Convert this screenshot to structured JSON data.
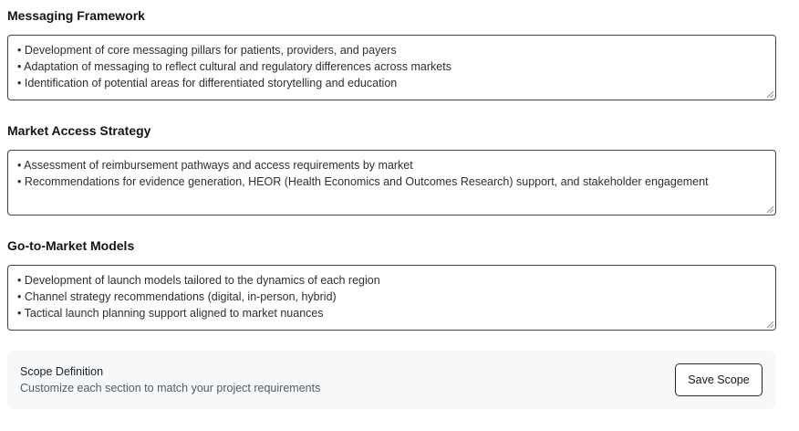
{
  "sections": [
    {
      "title": "Messaging Framework",
      "lines": [
        "• Development of core messaging pillars for patients, providers, and payers",
        "• Adaptation of messaging to reflect cultural and regulatory differences across markets",
        "• Identification of potential areas for differentiated storytelling and education"
      ]
    },
    {
      "title": "Market Access Strategy",
      "lines": [
        "• Assessment of reimbursement pathways and access requirements by market",
        "• Recommendations for evidence generation, HEOR (Health Economics and Outcomes Research) support, and stakeholder engagement"
      ]
    },
    {
      "title": "Go-to-Market Models",
      "lines": [
        "• Development of launch models tailored to the dynamics of each region",
        "• Channel strategy recommendations (digital, in-person, hybrid)",
        "• Tactical launch planning support aligned to market nuances"
      ]
    }
  ],
  "footer": {
    "title": "Scope Definition",
    "subtitle": "Customize each section to match your project requirements",
    "save_label": "Save Scope"
  }
}
